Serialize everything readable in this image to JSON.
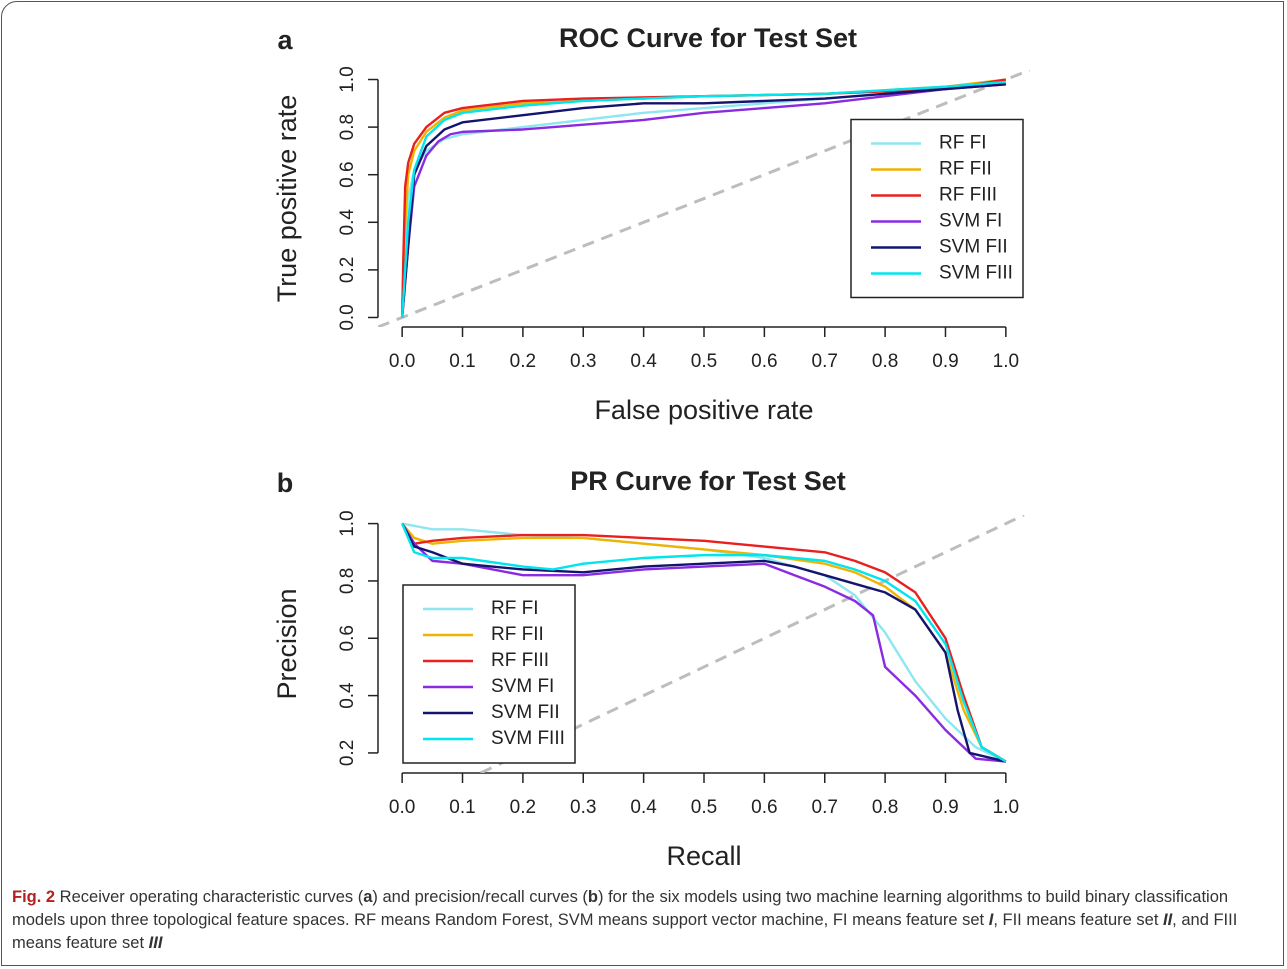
{
  "chart_data": [
    {
      "type": "line",
      "panel_label": "a",
      "title": "ROC Curve for Test Set",
      "x_label": "False positive rate",
      "y_label": "True positive rate",
      "xlim": [
        -0.04,
        1.04
      ],
      "ylim": [
        -0.04,
        1.04
      ],
      "xticks": [
        {
          "value": 0,
          "label": "0.0"
        },
        0.1,
        0.2,
        0.3,
        0.4,
        0.5,
        0.6,
        0.7,
        0.8,
        0.9,
        {
          "value": 1,
          "label": "1.0"
        }
      ],
      "yticks": [
        {
          "value": 0,
          "label": "0.0"
        },
        0.2,
        0.4,
        0.6,
        0.8,
        {
          "value": 1,
          "label": "1.0"
        }
      ],
      "diagonal": true,
      "legend": "right",
      "series": [
        {
          "name": "RF FI",
          "color": "#8ee6f0",
          "x": [
            0,
            0.005,
            0.01,
            0.02,
            0.04,
            0.07,
            0.1,
            0.2,
            0.3,
            0.4,
            0.5,
            0.6,
            0.7,
            0.8,
            0.9,
            1
          ],
          "values": [
            0,
            0.3,
            0.5,
            0.62,
            0.7,
            0.75,
            0.77,
            0.8,
            0.83,
            0.86,
            0.88,
            0.9,
            0.92,
            0.94,
            0.96,
            1
          ]
        },
        {
          "name": "RF FII",
          "color": "#f0b400",
          "x": [
            0,
            0.003,
            0.01,
            0.02,
            0.04,
            0.07,
            0.1,
            0.2,
            0.3,
            0.5,
            0.7,
            0.9,
            1
          ],
          "values": [
            0,
            0.3,
            0.6,
            0.7,
            0.78,
            0.84,
            0.87,
            0.9,
            0.91,
            0.93,
            0.94,
            0.97,
            1
          ]
        },
        {
          "name": "RF FIII",
          "color": "#e8201f",
          "x": [
            0,
            0.002,
            0.005,
            0.01,
            0.02,
            0.04,
            0.07,
            0.1,
            0.2,
            0.3,
            0.5,
            0.7,
            0.9,
            1
          ],
          "values": [
            0,
            0.25,
            0.55,
            0.65,
            0.73,
            0.8,
            0.86,
            0.88,
            0.91,
            0.92,
            0.93,
            0.94,
            0.96,
            1
          ]
        },
        {
          "name": "SVM FI",
          "color": "#8a2be2",
          "x": [
            0,
            0.01,
            0.02,
            0.04,
            0.06,
            0.08,
            0.1,
            0.2,
            0.3,
            0.4,
            0.5,
            0.6,
            0.7,
            0.8,
            0.9,
            1
          ],
          "values": [
            0,
            0.3,
            0.55,
            0.68,
            0.74,
            0.77,
            0.78,
            0.79,
            0.81,
            0.83,
            0.86,
            0.88,
            0.9,
            0.93,
            0.96,
            0.98
          ]
        },
        {
          "name": "SVM FII",
          "color": "#14146e",
          "x": [
            0,
            0.01,
            0.02,
            0.04,
            0.07,
            0.1,
            0.2,
            0.3,
            0.4,
            0.5,
            0.6,
            0.7,
            0.8,
            0.9,
            1
          ],
          "values": [
            0,
            0.3,
            0.6,
            0.72,
            0.79,
            0.82,
            0.85,
            0.88,
            0.9,
            0.9,
            0.91,
            0.92,
            0.94,
            0.96,
            0.98
          ]
        },
        {
          "name": "SVM FIII",
          "color": "#00e5ee",
          "x": [
            0,
            0.01,
            0.02,
            0.04,
            0.07,
            0.1,
            0.2,
            0.3,
            0.5,
            0.7,
            0.9,
            1
          ],
          "values": [
            0,
            0.4,
            0.62,
            0.76,
            0.83,
            0.86,
            0.89,
            0.91,
            0.93,
            0.94,
            0.97,
            0.99
          ]
        }
      ]
    },
    {
      "type": "line",
      "panel_label": "b",
      "title": "PR Curve for Test Set",
      "x_label": "Recall",
      "y_label": "Precision",
      "xlim": [
        -0.04,
        1.04
      ],
      "ylim": [
        0.13,
        1.03
      ],
      "xticks": [
        {
          "value": 0,
          "label": "0.0"
        },
        0.1,
        0.2,
        0.3,
        0.4,
        0.5,
        0.6,
        0.7,
        0.8,
        0.9,
        {
          "value": 1,
          "label": "1.0"
        }
      ],
      "yticks": [
        0.2,
        0.4,
        0.6,
        0.8,
        {
          "value": 1,
          "label": "1.0"
        }
      ],
      "diagonal": true,
      "legend": "bottomleft",
      "series": [
        {
          "name": "RF FI",
          "color": "#8ee6f0",
          "x": [
            0,
            0.05,
            0.1,
            0.2,
            0.3,
            0.4,
            0.5,
            0.6,
            0.65,
            0.7,
            0.75,
            0.8,
            0.85,
            0.9,
            0.95,
            1
          ],
          "values": [
            1,
            0.98,
            0.98,
            0.96,
            0.95,
            0.93,
            0.91,
            0.88,
            0.85,
            0.82,
            0.75,
            0.62,
            0.45,
            0.32,
            0.22,
            0.17
          ]
        },
        {
          "name": "RF FII",
          "color": "#f0b400",
          "x": [
            0,
            0.02,
            0.05,
            0.1,
            0.2,
            0.3,
            0.4,
            0.5,
            0.6,
            0.7,
            0.75,
            0.8,
            0.85,
            0.9,
            0.93,
            0.96,
            1
          ],
          "values": [
            1,
            0.95,
            0.93,
            0.94,
            0.95,
            0.95,
            0.93,
            0.91,
            0.89,
            0.86,
            0.83,
            0.78,
            0.7,
            0.55,
            0.35,
            0.22,
            0.17
          ]
        },
        {
          "name": "RF FIII",
          "color": "#e8201f",
          "x": [
            0,
            0.02,
            0.05,
            0.1,
            0.2,
            0.3,
            0.4,
            0.5,
            0.6,
            0.7,
            0.75,
            0.8,
            0.85,
            0.9,
            0.93,
            0.96,
            1
          ],
          "values": [
            1,
            0.93,
            0.94,
            0.95,
            0.96,
            0.96,
            0.95,
            0.94,
            0.92,
            0.9,
            0.87,
            0.83,
            0.76,
            0.6,
            0.4,
            0.22,
            0.17
          ]
        },
        {
          "name": "SVM FI",
          "color": "#8a2be2",
          "x": [
            0,
            0.02,
            0.05,
            0.1,
            0.15,
            0.2,
            0.3,
            0.4,
            0.5,
            0.6,
            0.65,
            0.7,
            0.75,
            0.78,
            0.8,
            0.85,
            0.9,
            0.95,
            1
          ],
          "values": [
            1,
            0.93,
            0.87,
            0.86,
            0.84,
            0.82,
            0.82,
            0.84,
            0.85,
            0.86,
            0.82,
            0.78,
            0.73,
            0.68,
            0.5,
            0.4,
            0.28,
            0.18,
            0.17
          ]
        },
        {
          "name": "SVM FII",
          "color": "#14146e",
          "x": [
            0,
            0.02,
            0.05,
            0.1,
            0.2,
            0.3,
            0.4,
            0.5,
            0.6,
            0.65,
            0.7,
            0.75,
            0.8,
            0.85,
            0.9,
            0.92,
            0.94,
            1
          ],
          "values": [
            1,
            0.92,
            0.9,
            0.86,
            0.84,
            0.83,
            0.85,
            0.86,
            0.87,
            0.85,
            0.82,
            0.79,
            0.76,
            0.7,
            0.55,
            0.35,
            0.2,
            0.17
          ]
        },
        {
          "name": "SVM FIII",
          "color": "#00e5ee",
          "x": [
            0,
            0.02,
            0.05,
            0.1,
            0.2,
            0.25,
            0.3,
            0.4,
            0.5,
            0.6,
            0.7,
            0.75,
            0.8,
            0.85,
            0.9,
            0.93,
            0.96,
            1
          ],
          "values": [
            1,
            0.9,
            0.88,
            0.88,
            0.85,
            0.84,
            0.86,
            0.88,
            0.89,
            0.89,
            0.87,
            0.84,
            0.8,
            0.73,
            0.58,
            0.38,
            0.22,
            0.17
          ]
        }
      ]
    }
  ],
  "caption": [
    "Fig. 2",
    " Receiver operating characteristic curves (",
    "a",
    ") and precision/recall curves (",
    "b",
    ") for the six models using two machine learning algorithms to build binary classification models upon three topological feature spaces. RF means Random Forest, SVM means support vector machine, FI means feature set ",
    "I",
    ", FII means feature set ",
    "II",
    ", and FIII means feature set ",
    "III"
  ]
}
